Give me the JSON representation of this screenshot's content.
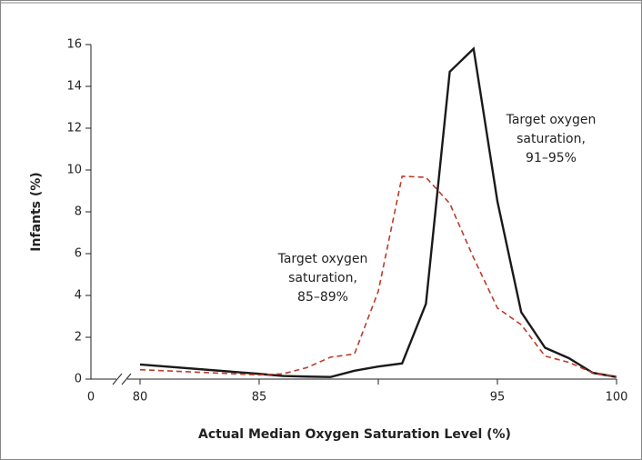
{
  "chart_data": {
    "type": "line",
    "x_label": "Actual Median Oxygen Saturation Level (%)",
    "y_label": "Infants (%)",
    "x": [
      80,
      85,
      86,
      87,
      88,
      89,
      90,
      91,
      92,
      93,
      94,
      95,
      96,
      97,
      98,
      99,
      100
    ],
    "series": [
      {
        "name": "Target oxygen saturation, 91–95%",
        "color": "#1a1a1a",
        "dashed": false,
        "label_lines": [
          "Target oxygen",
          "saturation,",
          "91–95%"
        ],
        "values": [
          0.7,
          0.25,
          0.15,
          0.12,
          0.1,
          0.4,
          0.6,
          0.75,
          3.6,
          14.7,
          15.8,
          8.5,
          3.2,
          1.5,
          1.0,
          0.3,
          0.1
        ]
      },
      {
        "name": "Target oxygen saturation, 85–89%",
        "color": "#c0392b",
        "dashed": true,
        "label_lines": [
          "Target oxygen",
          "saturation,",
          "85–89%"
        ],
        "values": [
          0.45,
          0.2,
          0.25,
          0.55,
          1.05,
          1.2,
          4.2,
          9.7,
          9.65,
          8.4,
          5.8,
          3.4,
          2.6,
          1.1,
          0.8,
          0.3,
          0.1
        ]
      }
    ],
    "x_origin_label": 0,
    "xlim": [
      80,
      100
    ],
    "xticks": [
      80,
      85,
      {
        "value": 90,
        "label": null
      },
      95,
      100
    ],
    "ylim": [
      0,
      16
    ],
    "yticks": [
      0,
      2,
      4,
      6,
      8,
      10,
      12,
      14,
      16
    ]
  }
}
